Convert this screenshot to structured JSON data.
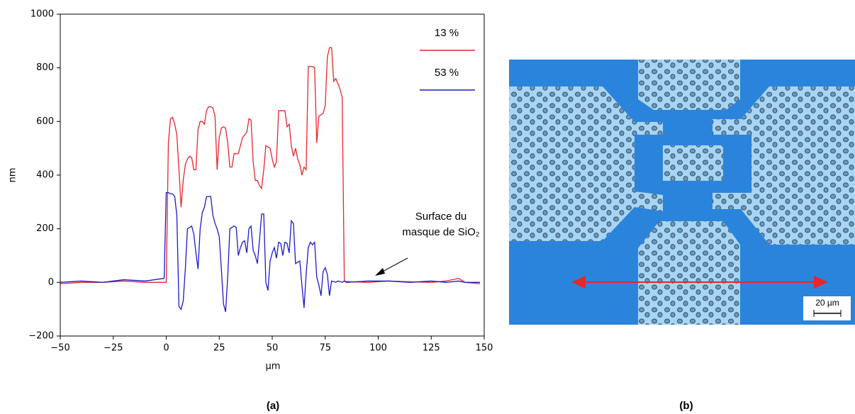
{
  "chart_data": {
    "type": "line",
    "x_label": "µm",
    "y_label": "nm",
    "x": [
      -50,
      -40,
      -30,
      -20,
      -10,
      -1,
      0,
      1,
      2,
      3,
      4,
      5,
      6,
      7,
      8,
      9,
      10,
      11,
      12,
      13,
      14,
      15,
      16,
      17,
      18,
      19,
      20,
      21,
      22,
      23,
      24,
      25,
      26,
      27,
      28,
      29,
      30,
      31,
      32,
      33,
      34,
      35,
      36,
      37,
      38,
      39,
      40,
      41,
      42,
      43,
      44,
      45,
      46,
      47,
      48,
      49,
      50,
      51,
      52,
      53,
      54,
      55,
      56,
      57,
      58,
      59,
      60,
      61,
      62,
      63,
      64,
      65,
      66,
      67,
      68,
      69,
      70,
      71,
      72,
      73,
      74,
      75,
      76,
      77,
      78,
      79,
      80,
      81,
      82,
      83,
      84,
      85,
      95,
      105,
      115,
      125,
      132,
      138,
      141,
      148
    ],
    "series": [
      {
        "name": "13 %",
        "color": "#e8262b",
        "values": [
          -5,
          0,
          0,
          5,
          0,
          0,
          0,
          520,
          610,
          615,
          590,
          550,
          420,
          280,
          380,
          440,
          460,
          470,
          465,
          420,
          420,
          570,
          600,
          600,
          590,
          640,
          655,
          655,
          650,
          620,
          420,
          540,
          575,
          580,
          575,
          520,
          430,
          430,
          480,
          480,
          480,
          510,
          540,
          550,
          560,
          610,
          605,
          450,
          380,
          380,
          360,
          350,
          420,
          510,
          505,
          500,
          460,
          430,
          450,
          640,
          640,
          640,
          640,
          580,
          590,
          510,
          470,
          500,
          460,
          440,
          400,
          430,
          420,
          805,
          805,
          805,
          800,
          520,
          620,
          625,
          630,
          660,
          840,
          875,
          875,
          750,
          760,
          740,
          720,
          690,
          5,
          3,
          0,
          5,
          2,
          0,
          5,
          15,
          0,
          -5
        ]
      },
      {
        "name": "53 %",
        "color": "#1a1ad0",
        "values": [
          0,
          5,
          0,
          10,
          5,
          15,
          335,
          335,
          330,
          330,
          320,
          250,
          -90,
          -100,
          -70,
          50,
          200,
          205,
          210,
          180,
          110,
          50,
          200,
          260,
          280,
          320,
          320,
          320,
          250,
          220,
          200,
          170,
          50,
          -80,
          -110,
          20,
          200,
          205,
          210,
          205,
          100,
          130,
          150,
          155,
          110,
          200,
          210,
          120,
          100,
          70,
          160,
          255,
          255,
          0,
          -30,
          80,
          110,
          130,
          90,
          150,
          145,
          100,
          150,
          145,
          110,
          230,
          220,
          70,
          75,
          80,
          -10,
          -95,
          30,
          130,
          150,
          140,
          150,
          20,
          -10,
          -50,
          40,
          55,
          30,
          -50,
          5,
          3,
          0,
          5,
          3,
          0,
          5,
          0,
          5,
          5,
          0,
          5,
          0,
          5,
          0,
          0
        ]
      }
    ],
    "xlim": [
      -50,
      150
    ],
    "ylim": [
      -200,
      1000
    ],
    "xticks": [
      {
        "value": -50,
        "label": "−50"
      },
      {
        "value": -25,
        "label": "−25"
      },
      0,
      25,
      50,
      75,
      100,
      125,
      150
    ],
    "yticks": [
      {
        "value": -200,
        "label": "−200"
      },
      0,
      200,
      400,
      600,
      800,
      1000
    ],
    "grid": false,
    "legend": "upper right",
    "annotation_lines": [
      "Surface du",
      "masque de SiO₂"
    ]
  },
  "image_panel": {
    "scale_bar": "20 µm"
  },
  "panel_labels": [
    "(a)",
    "(b)"
  ]
}
